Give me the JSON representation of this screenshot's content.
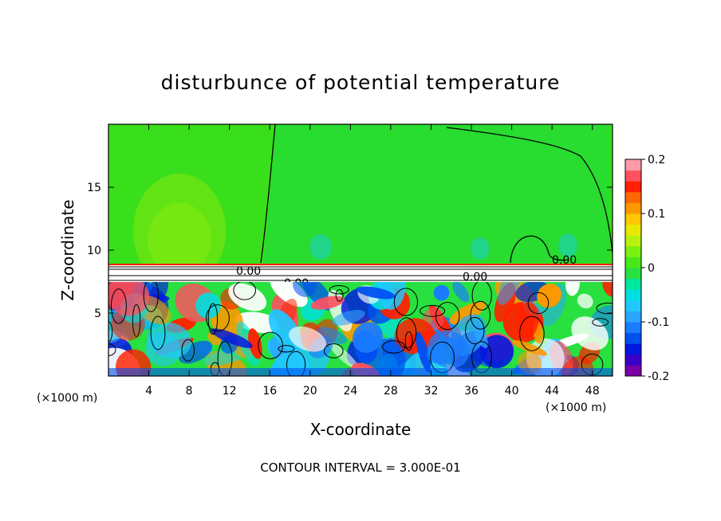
{
  "chart_data": {
    "type": "heatmap",
    "title": "disturbunce of potential temperature",
    "xlabel": "X-coordinate",
    "ylabel": "Z-coordinate",
    "x_unit": "(×1000 m)",
    "z_unit": "(×1000 m)",
    "xlim": [
      0,
      50
    ],
    "ylim": [
      0,
      20
    ],
    "x_ticks": [
      "4",
      "8",
      "12",
      "16",
      "20",
      "24",
      "28",
      "32",
      "36",
      "40",
      "44",
      "48"
    ],
    "y_ticks": [
      "5",
      "10",
      "15"
    ],
    "colorbar": {
      "range": [
        -0.2,
        0.2
      ],
      "tick_labels": [
        "0.2",
        "0.1",
        "0",
        "-0.1",
        "-0.2"
      ],
      "colors": [
        "#7b00a8",
        "#3a00c8",
        "#0018e0",
        "#0050f0",
        "#1a7cff",
        "#2aa6ff",
        "#20c8ff",
        "#00e0e0",
        "#00e8a0",
        "#28e040",
        "#48e818",
        "#78f010",
        "#b8f010",
        "#e8e800",
        "#ffc800",
        "#ff9800",
        "#ff6800",
        "#ff2000",
        "#ff5060",
        "#ff9aa8"
      ]
    },
    "contour_labels": [
      "0.00",
      "0.00",
      "0.00",
      "0.00"
    ],
    "footer": "CONTOUR INTERVAL = 3.000E-01"
  }
}
